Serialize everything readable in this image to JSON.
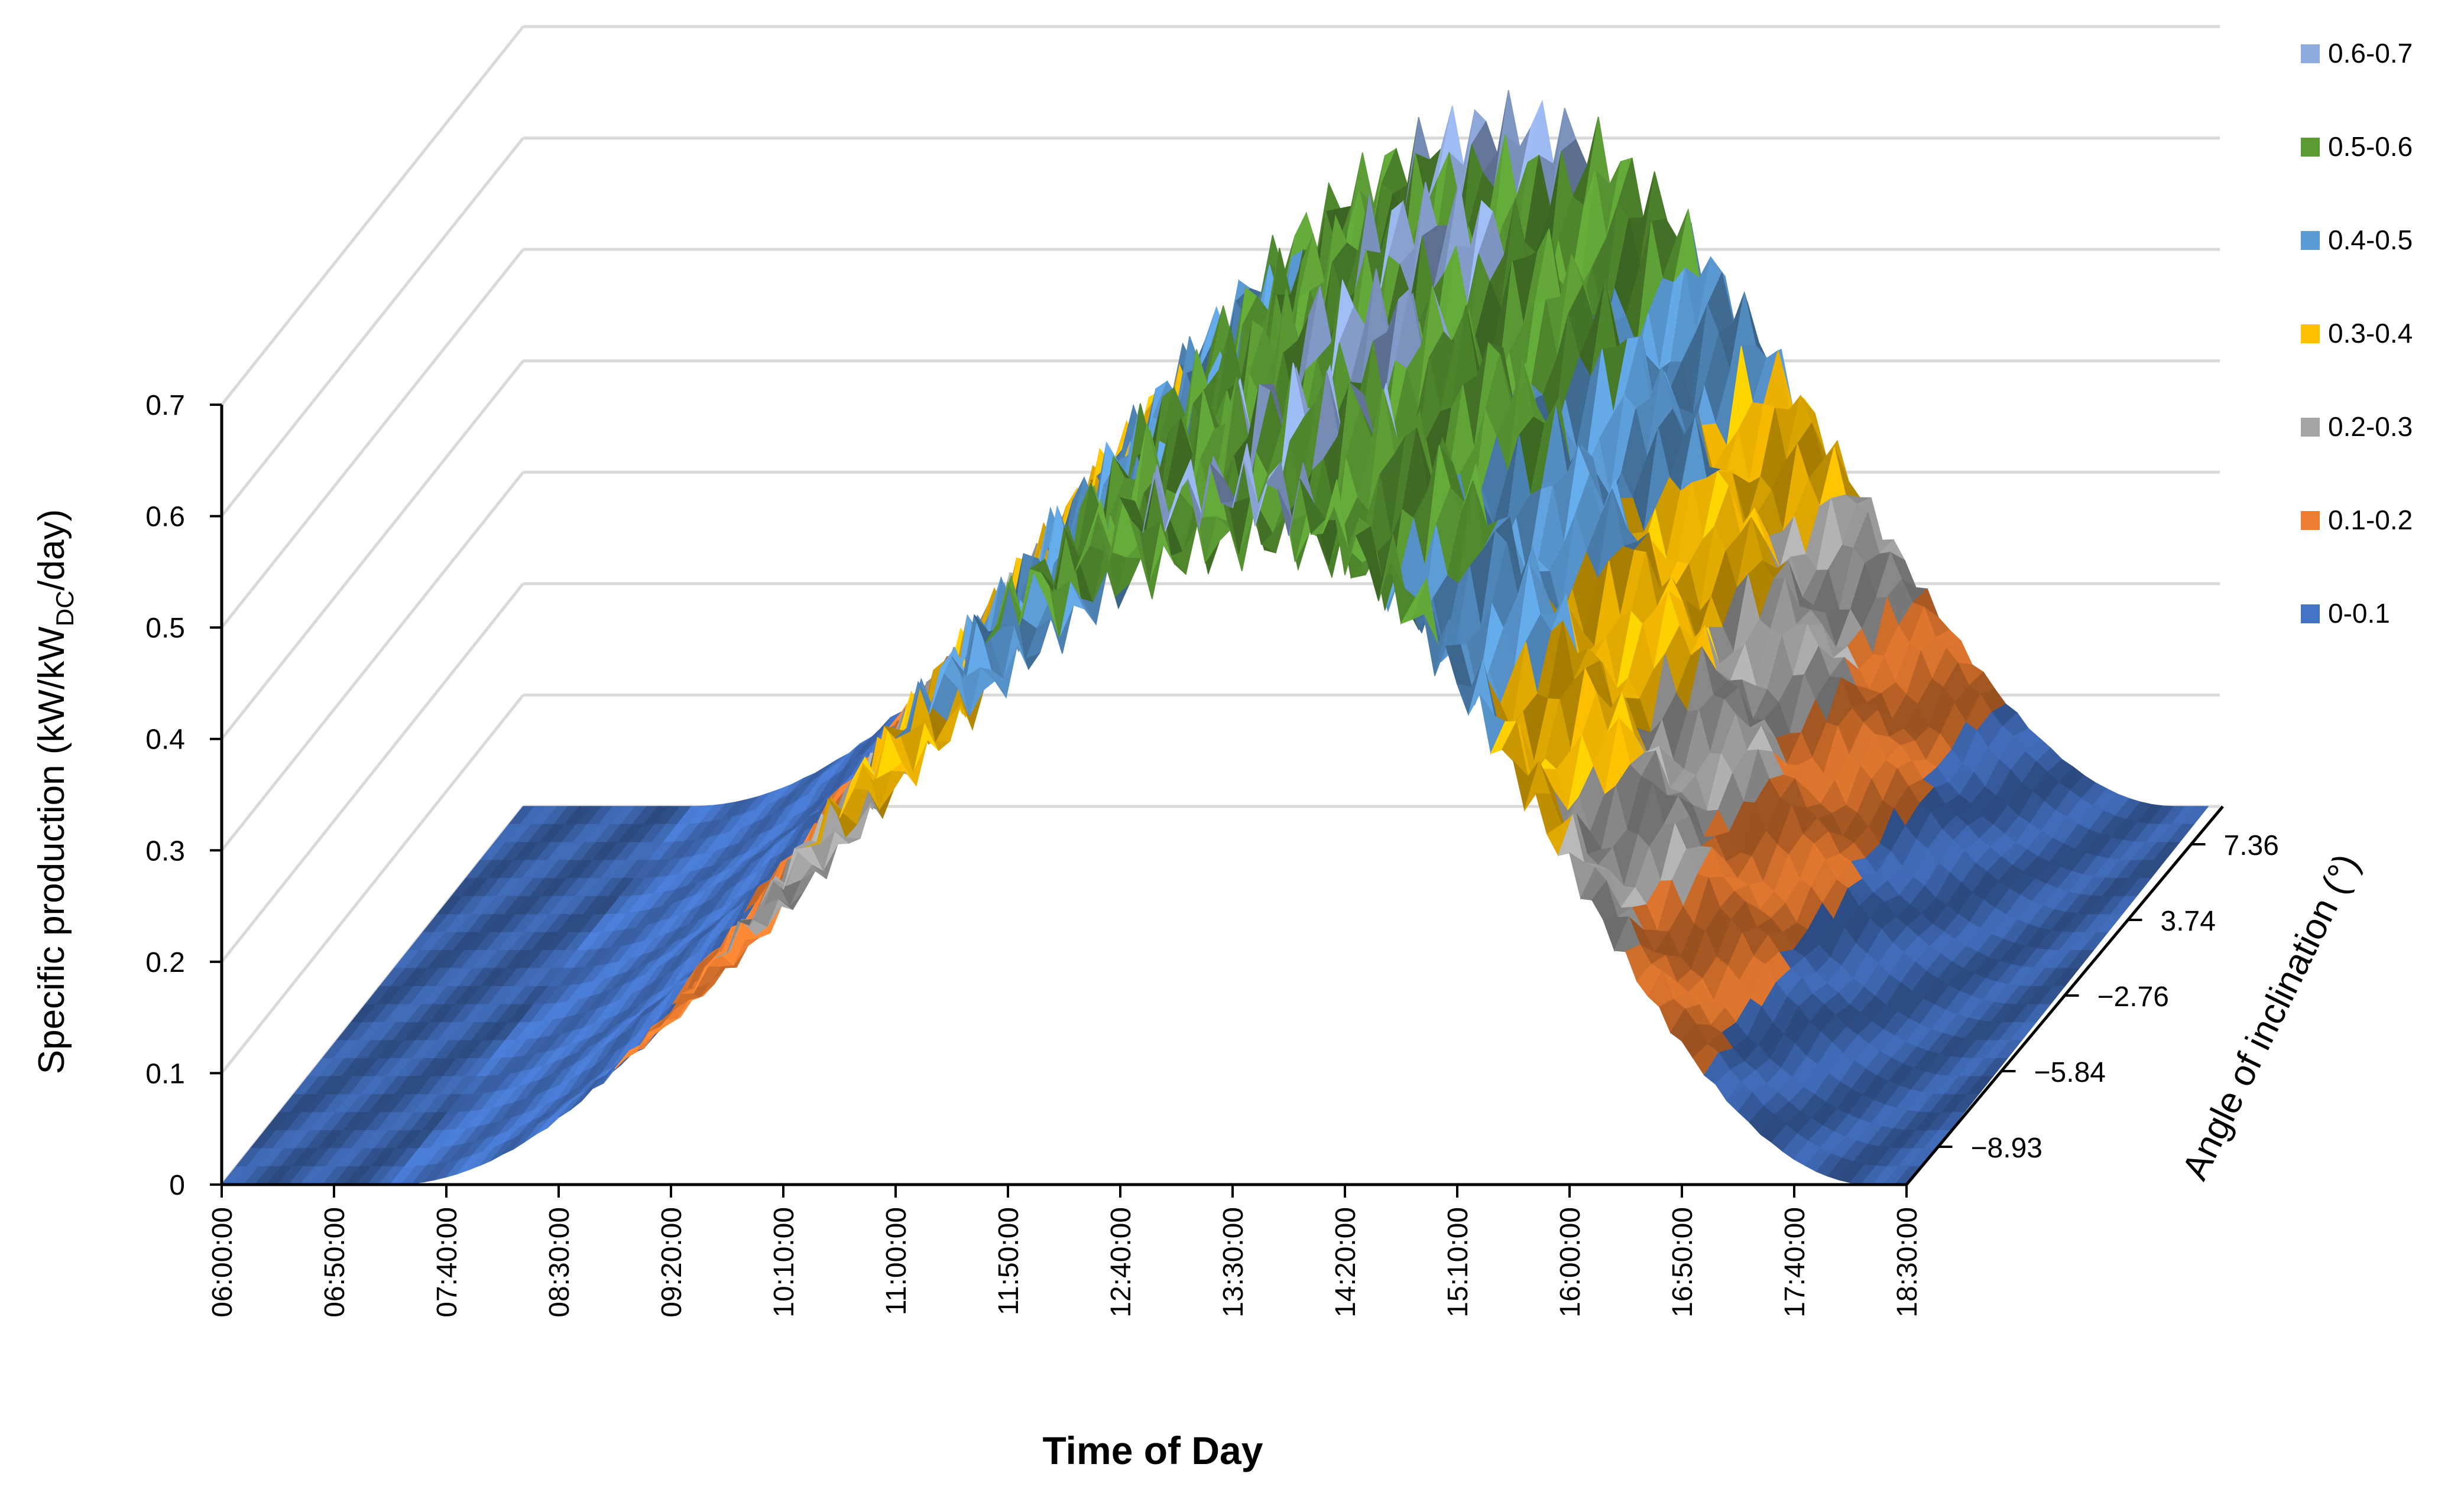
{
  "chart_data": {
    "type": "surface",
    "title": "",
    "xlabel": "Time of Day",
    "ylabel_prefix": "Specific production (kW/kW",
    "ylabel_sub": "DC",
    "ylabel_suffix": "/day)",
    "zlabel": "Angle of inclination (°)",
    "ylim": [
      0,
      0.7
    ],
    "y_ticks": [
      "0",
      "0.1",
      "0.2",
      "0.3",
      "0.4",
      "0.5",
      "0.6",
      "0.7"
    ],
    "x_ticks": [
      "06:00:00",
      "06:50:00",
      "07:40:00",
      "08:30:00",
      "09:20:00",
      "10:10:00",
      "11:00:00",
      "11:50:00",
      "12:40:00",
      "13:30:00",
      "14:20:00",
      "15:10:00",
      "16:00:00",
      "16:50:00",
      "17:40:00",
      "18:30:00"
    ],
    "z_ticks": [
      "−8.93",
      "−5.84",
      "−2.76",
      "3.74",
      "7.36"
    ],
    "legend": [
      {
        "label": "0.6-0.7",
        "color": "#8FAADC"
      },
      {
        "label": "0.5-0.6",
        "color": "#5B9B34"
      },
      {
        "label": "0.4-0.5",
        "color": "#5B9BD5"
      },
      {
        "label": "0.3-0.4",
        "color": "#FFC000"
      },
      {
        "label": "0.2-0.3",
        "color": "#A5A5A5"
      },
      {
        "label": "0.1-0.2",
        "color": "#ED7D31"
      },
      {
        "label": "0-0.1",
        "color": "#4472C4"
      }
    ],
    "legend_placement": "top-right",
    "grid": true,
    "approx_peak_value": 0.63,
    "approx_peak_time": "13:30:00",
    "production_window": [
      "07:15:00",
      "18:15:00"
    ]
  }
}
